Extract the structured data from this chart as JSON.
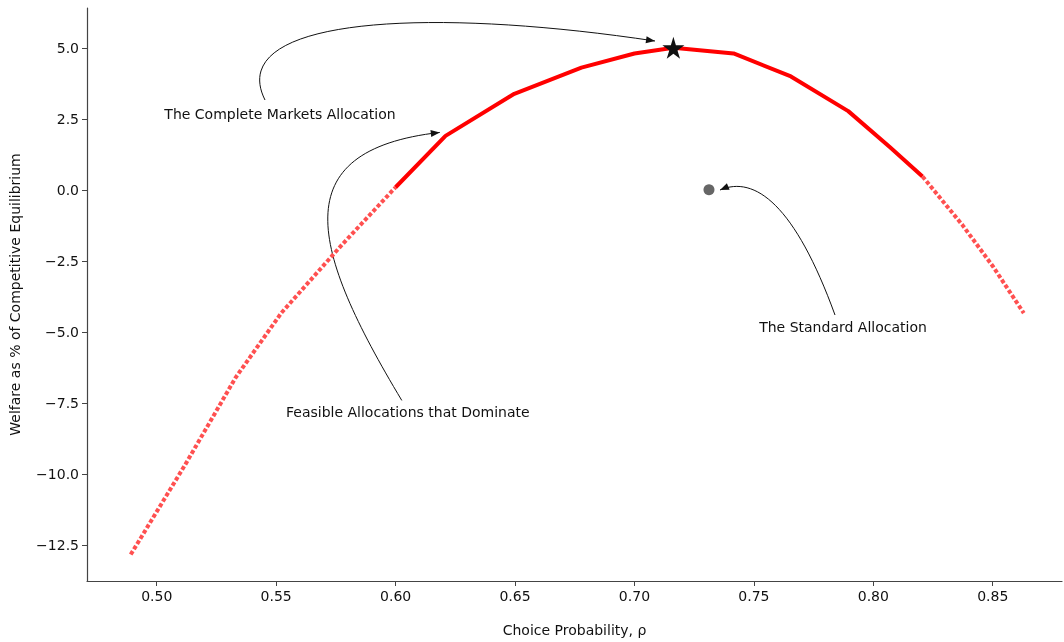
{
  "chart_data": {
    "type": "line",
    "xlabel": "Choice Probability, ρ",
    "ylabel": "Welfare as % of Competitive Equilibrium",
    "xlim": [
      0.4708,
      0.879
    ],
    "ylim": [
      -13.77,
      6.4
    ],
    "xticks": [
      {
        "value": 0.5,
        "label": "0.50"
      },
      {
        "value": 0.55,
        "label": "0.55"
      },
      {
        "value": 0.6,
        "label": "0.60"
      },
      {
        "value": 0.65,
        "label": "0.65"
      },
      {
        "value": 0.7,
        "label": "0.70"
      },
      {
        "value": 0.75,
        "label": "0.75"
      },
      {
        "value": 0.8,
        "label": "0.80"
      },
      {
        "value": 0.85,
        "label": "0.85"
      }
    ],
    "yticks": [
      {
        "value": 5,
        "label": "5.0"
      },
      {
        "value": 2.5,
        "label": "2.5"
      },
      {
        "value": 0,
        "label": "0.0"
      },
      {
        "value": -2.5,
        "label": "−2.5"
      },
      {
        "value": -5,
        "label": "−5.0"
      },
      {
        "value": -7.5,
        "label": "−7.5"
      },
      {
        "value": -10,
        "label": "−10.0"
      },
      {
        "value": -12.5,
        "label": "−12.5"
      }
    ],
    "grid": false,
    "series": [
      {
        "color": "#ff5050",
        "line_style": "dashed",
        "x": [
          0.4891,
          0.5123,
          0.5331,
          0.5522,
          0.5778,
          0.6
        ],
        "values": [
          -12.84,
          -9.62,
          -6.6,
          -4.33,
          -1.91,
          0.09
        ]
      },
      {
        "color": "#ff0000",
        "line_style": "solid",
        "x": [
          0.6,
          0.6209,
          0.6497,
          0.6778,
          0.7,
          0.7163,
          0.7415,
          0.7655,
          0.7895,
          0.807,
          0.8206
        ],
        "values": [
          0.09,
          1.9,
          3.38,
          4.3,
          4.8,
          5.0,
          4.8,
          3.99,
          2.77,
          1.5,
          0.47
        ]
      },
      {
        "color": "#ff5050",
        "line_style": "dashed",
        "x": [
          0.8206,
          0.8374,
          0.8502,
          0.863
        ],
        "values": [
          0.47,
          -1.25,
          -2.71,
          -4.34
        ]
      },
      {
        "type": "scatter",
        "marker": "star",
        "color": "#111111",
        "x": [
          0.7163
        ],
        "values": [
          5.0
        ]
      },
      {
        "type": "scatter",
        "marker": "circle",
        "color": "#666666",
        "x": [
          0.7312
        ],
        "values": [
          0.0
        ]
      }
    ],
    "annotations": [
      "The Complete Markets Allocation",
      {
        "text": "Feasible Allocations that Dominate",
        "x": 0.6185,
        "y": 2.02
      },
      "The Standard Allocation"
    ]
  }
}
